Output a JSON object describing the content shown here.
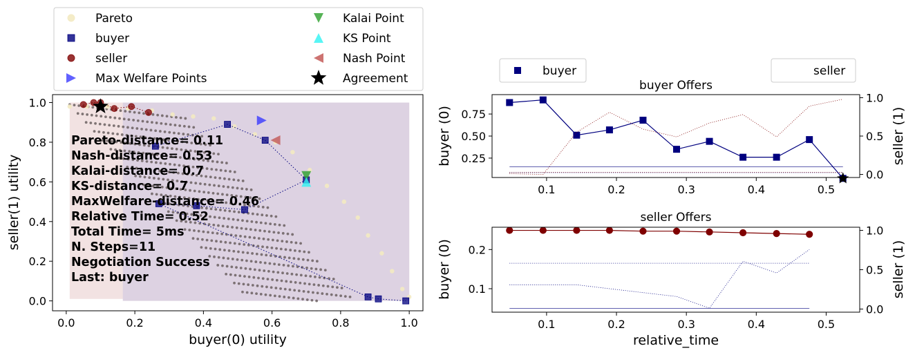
{
  "chart_data": [
    {
      "id": "utility",
      "type": "scatter",
      "xlabel": "buyer(0) utility",
      "ylabel": "seller(1) utility",
      "xlim": [
        -0.04,
        1.04
      ],
      "ylim": [
        -0.05,
        1.04
      ],
      "xticks": [
        0.0,
        0.2,
        0.4,
        0.6,
        0.8,
        1.0
      ],
      "yticks": [
        0.0,
        0.2,
        0.4,
        0.6,
        0.8,
        1.0
      ],
      "tick_format": 1,
      "legend": {
        "placement": "top (outside)",
        "entries": [
          {
            "label": "Pareto",
            "marker": "circle",
            "color": "#f3eac2"
          },
          {
            "label": "buyer",
            "marker": "square",
            "color": "#00007f"
          },
          {
            "label": "seller",
            "marker": "circle",
            "color": "#7f0000"
          },
          {
            "label": "Max Welfare Points",
            "marker": "triangle-right",
            "color": "#3a3aff"
          },
          {
            "label": "Kalai Point",
            "marker": "triangle-down",
            "color": "#2ca02c"
          },
          {
            "label": "KS Point",
            "marker": "triangle-up",
            "color": "#2ef2f2"
          },
          {
            "label": "Nash Point",
            "marker": "triangle-left",
            "color": "#c0504d"
          },
          {
            "label": "Agreement",
            "marker": "star",
            "color": "#000000"
          }
        ]
      },
      "stats": [
        "Pareto-distance= 0.11",
        "Nash-distance= 0.53",
        "Kalai-distance=  0.7",
        "KS-distance=  0.7",
        "MaxWelfare-distance= 0.46",
        "Relative Time= 0.52",
        "Total Time= 5ms",
        "N. Steps=11",
        "Negotiation Success",
        "Last: buyer"
      ],
      "buyer_offers": [
        [
          0.26,
          0.78
        ],
        [
          0.47,
          0.89
        ],
        [
          0.58,
          0.81
        ],
        [
          0.7,
          0.61
        ],
        [
          0.52,
          0.46
        ],
        [
          0.38,
          0.48
        ],
        [
          0.27,
          0.49
        ],
        [
          0.88,
          0.02
        ],
        [
          0.91,
          0.01
        ],
        [
          0.99,
          0.0
        ]
      ],
      "seller_offers": [
        [
          0.05,
          0.99
        ],
        [
          0.08,
          1.0
        ],
        [
          0.1,
          1.0
        ],
        [
          0.14,
          0.97
        ],
        [
          0.19,
          0.98
        ],
        [
          0.24,
          0.95
        ]
      ],
      "max_welfare_point": [
        0.57,
        0.91
      ],
      "kalai_point": [
        0.7,
        0.63
      ],
      "ks_point": [
        0.7,
        0.6
      ],
      "nash_point": [
        0.61,
        0.81
      ],
      "agreement": [
        0.1,
        0.98
      ],
      "pareto_front": [
        [
          0.01,
          0.98
        ],
        [
          0.06,
          0.98
        ],
        [
          0.12,
          0.98
        ],
        [
          0.18,
          0.97
        ],
        [
          0.25,
          0.96
        ],
        [
          0.31,
          0.94
        ],
        [
          0.37,
          0.93
        ],
        [
          0.43,
          0.92
        ],
        [
          0.49,
          0.88
        ],
        [
          0.55,
          0.84
        ],
        [
          0.61,
          0.8
        ],
        [
          0.66,
          0.75
        ],
        [
          0.71,
          0.66
        ],
        [
          0.76,
          0.58
        ],
        [
          0.81,
          0.5
        ],
        [
          0.85,
          0.42
        ],
        [
          0.88,
          0.33
        ],
        [
          0.92,
          0.24
        ],
        [
          0.95,
          0.15
        ],
        [
          0.98,
          0.06
        ],
        [
          1.0,
          0.02
        ]
      ],
      "background_regions": [
        {
          "x": [
            0.01,
            1.0
          ],
          "y": [
            0.01,
            1.0
          ],
          "color": "#f2e2e2"
        },
        {
          "x": [
            0.165,
            1.0
          ],
          "y": [
            0.0,
            1.0
          ],
          "color": "#ddd2e2"
        }
      ]
    },
    {
      "id": "buyer_offers",
      "type": "line",
      "title": "buyer Offers",
      "ylabel_left": "buyer (0)",
      "ylabel_right": "seller (1)",
      "xlim": [
        0.022,
        0.548
      ],
      "ylim_left": [
        0.03,
        0.97
      ],
      "ylim_right": [
        -0.04,
        1.04
      ],
      "xticks": [
        0.1,
        0.2,
        0.3,
        0.4,
        0.5
      ],
      "xtick_format": 1,
      "yticks_left": [
        0.25,
        0.5,
        0.75
      ],
      "yticks_left_format": 2,
      "yticks_right": [
        0.0,
        0.5,
        1.0
      ],
      "yticks_right_format": 1,
      "legend": [
        {
          "label": "buyer",
          "marker": "square",
          "color": "#00007f",
          "placement": "upper-left (outside)"
        },
        {
          "label": "seller",
          "marker": "none",
          "color": "#7f0000",
          "placement": "upper-right (outside)"
        }
      ],
      "series": [
        {
          "name": "buyer",
          "axis": "left",
          "color": "#00007f",
          "x": [
            0.047,
            0.095,
            0.143,
            0.19,
            0.238,
            0.286,
            0.333,
            0.381,
            0.429,
            0.476,
            0.524
          ],
          "y": [
            0.88,
            0.91,
            0.51,
            0.57,
            0.68,
            0.35,
            0.44,
            0.26,
            0.26,
            0.46,
            0.02
          ]
        },
        {
          "axis": "right",
          "color": "#7f0000",
          "style": "dotted",
          "x": [
            0.047,
            0.095,
            0.143,
            0.19,
            0.238,
            0.286,
            0.333,
            0.381,
            0.429,
            0.476,
            0.524
          ],
          "y": [
            0.01,
            0.0,
            0.55,
            0.81,
            0.59,
            0.49,
            0.67,
            0.78,
            0.49,
            0.89,
            0.98
          ]
        },
        {
          "axis": "left",
          "color": "#00007f",
          "style": "solid-thin",
          "x": [
            0.047,
            0.524
          ],
          "y": [
            0.15,
            0.15
          ]
        },
        {
          "axis": "left",
          "color": "#00007f",
          "style": "dotted",
          "x": [
            0.047,
            0.524
          ],
          "y": [
            0.085,
            0.085
          ]
        },
        {
          "axis": "left",
          "color": "#7f0000",
          "style": "dotted",
          "x": [
            0.047,
            0.524
          ],
          "y": [
            0.09,
            0.09
          ]
        }
      ],
      "agreement": [
        0.524,
        0.02
      ]
    },
    {
      "id": "seller_offers",
      "type": "line",
      "title": "seller Offers",
      "xlabel": "relative_time",
      "ylabel_left": "buyer (0)",
      "ylabel_right": "seller (1)",
      "xlim": [
        0.022,
        0.548
      ],
      "ylim_left": [
        0.04,
        0.257
      ],
      "ylim_right": [
        -0.04,
        1.04
      ],
      "xticks": [
        0.1,
        0.2,
        0.3,
        0.4,
        0.5
      ],
      "xtick_format": 1,
      "yticks_left": [
        0.1,
        0.2
      ],
      "yticks_left_format": 1,
      "yticks_right": [
        0.0,
        0.5,
        1.0
      ],
      "yticks_right_format": 1,
      "series": [
        {
          "name": "seller",
          "axis": "right",
          "color": "#7f0000",
          "x": [
            0.047,
            0.095,
            0.143,
            0.19,
            0.238,
            0.286,
            0.333,
            0.381,
            0.429,
            0.476
          ],
          "y": [
            1.0,
            1.0,
            1.0,
            1.0,
            0.99,
            0.99,
            0.98,
            0.97,
            0.96,
            0.95
          ]
        },
        {
          "axis": "left",
          "color": "#00007f",
          "style": "dotted",
          "x": [
            0.047,
            0.095,
            0.143,
            0.19,
            0.238,
            0.286,
            0.333,
            0.381,
            0.429,
            0.476
          ],
          "y": [
            0.11,
            0.11,
            0.11,
            0.1,
            0.09,
            0.08,
            0.05,
            0.17,
            0.14,
            0.2
          ]
        },
        {
          "axis": "left",
          "color": "#00007f",
          "style": "dotted",
          "x": [
            0.047,
            0.476
          ],
          "y": [
            0.165,
            0.165
          ]
        },
        {
          "axis": "left",
          "color": "#00007f",
          "style": "solid-thin",
          "x": [
            0.047,
            0.476
          ],
          "y": [
            0.05,
            0.05
          ]
        }
      ]
    }
  ]
}
